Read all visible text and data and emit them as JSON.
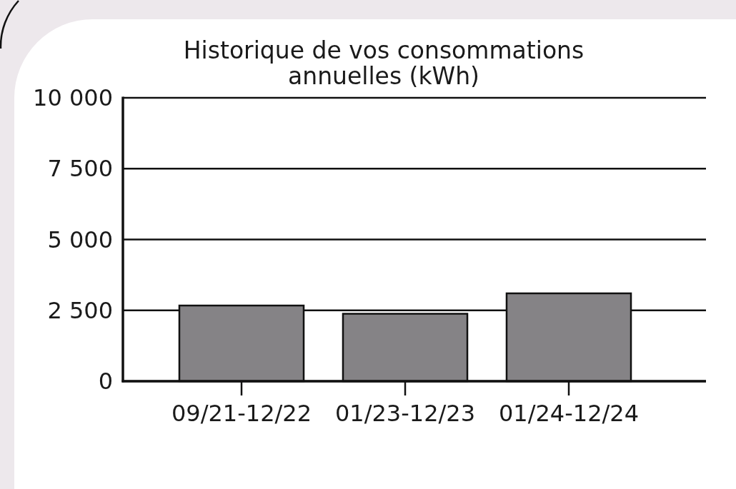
{
  "chart_data": {
    "type": "bar",
    "title": "Historique de vos consommations annuelles (kWh)",
    "categories": [
      "09/21-12/22",
      "01/23-12/23",
      "01/24-12/24"
    ],
    "values": [
      2670,
      2380,
      3100
    ],
    "color": "#858386",
    "ylim": [
      0,
      10000
    ],
    "yticks": [
      0,
      {
        "value": 2500,
        "label": "2 500"
      },
      {
        "value": 5000,
        "label": "5 000"
      },
      {
        "value": 7500,
        "label": "7 500"
      },
      {
        "value": 10000,
        "label": "10 000"
      }
    ],
    "grid": "y"
  }
}
